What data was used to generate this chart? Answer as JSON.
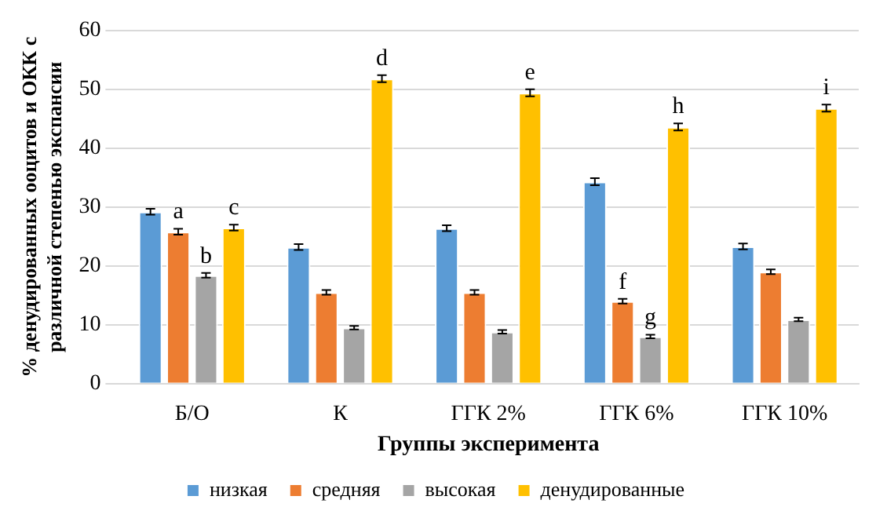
{
  "chart_data": {
    "type": "bar",
    "xlabel": "Группы эксперимента",
    "ylabel": "% денудированных ооцитов и ОКК с\nразличной степенью экспансии",
    "categories": [
      "Б/О",
      "К",
      "ГГК 2%",
      "ГГК 6%",
      "ГГК 10%"
    ],
    "series": [
      {
        "name": "низкая",
        "color": "#5b9bd5",
        "values": [
          29.2,
          23.2,
          26.4,
          34.3,
          23.3
        ],
        "errors": [
          0.5,
          0.5,
          0.5,
          0.6,
          0.5
        ]
      },
      {
        "name": "средняя",
        "color": "#ed7d31",
        "values": [
          25.8,
          15.5,
          15.5,
          14.0,
          19.0
        ],
        "errors": [
          0.5,
          0.4,
          0.4,
          0.4,
          0.4
        ]
      },
      {
        "name": "высокая",
        "color": "#a5a5a5",
        "values": [
          18.4,
          9.5,
          8.8,
          8.0,
          10.9
        ],
        "errors": [
          0.4,
          0.3,
          0.3,
          0.3,
          0.3
        ]
      },
      {
        "name": "денудированные",
        "color": "#ffc000",
        "values": [
          26.5,
          51.8,
          49.4,
          43.6,
          46.8
        ],
        "errors": [
          0.5,
          0.6,
          0.6,
          0.6,
          0.6
        ]
      }
    ],
    "ylim": [
      0,
      60
    ],
    "yticks": [
      0,
      10,
      20,
      30,
      40,
      50,
      60
    ],
    "grid": "y",
    "legend": "bottom",
    "annotations": [
      {
        "text": "a",
        "x": "Б/О",
        "y": 25.8
      },
      {
        "text": "b",
        "x": "Б/О",
        "y": 18.4
      },
      {
        "text": "c",
        "x": "Б/О",
        "y": 26.5
      },
      {
        "text": "d",
        "y": 51.8
      },
      {
        "text": "e",
        "y": 49.4
      },
      {
        "text": "f",
        "x": "ГГК 6%",
        "y": 14.0
      },
      {
        "text": "g",
        "x": "ГГК 6%",
        "y": 8.0
      },
      {
        "text": "h",
        "y": 43.6
      },
      {
        "text": "i",
        "y": 46.8
      }
    ]
  }
}
